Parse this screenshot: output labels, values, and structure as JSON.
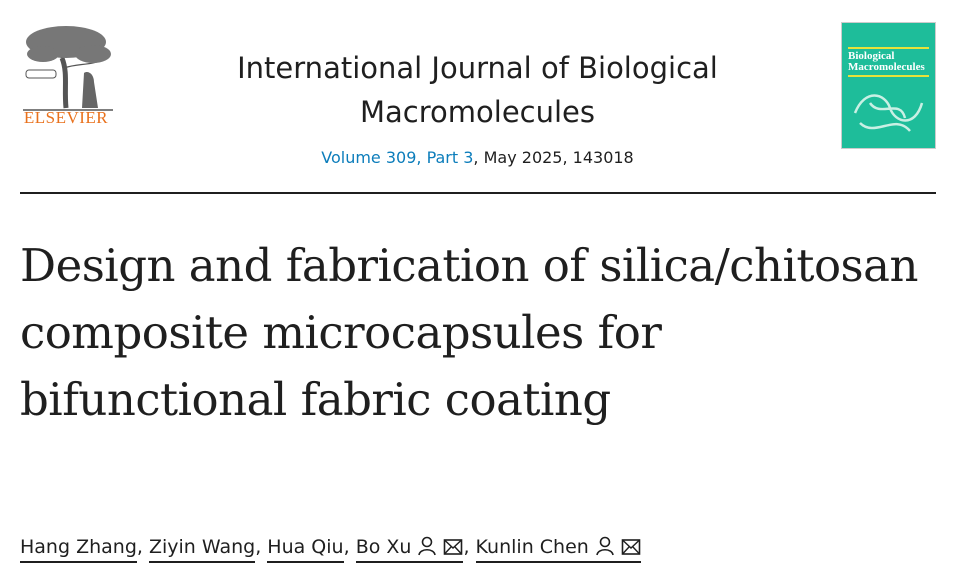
{
  "publisher": {
    "name": "ELSEVIER",
    "logo_icon": "elsevier-tree-logo"
  },
  "journal": {
    "title": "International Journal of Biological Macromolecules",
    "volume_link": "Volume 309, Part 3",
    "rest": ", May 2025, 143018",
    "cover": {
      "title_line1": "Biological",
      "title_line2": "Macromolecules",
      "color": "#1ebd9a"
    }
  },
  "article": {
    "title": "Design and fabrication of silica/chitosan composite microcapsules for bifunctional fabric coating"
  },
  "authors": [
    {
      "name": "Hang Zhang",
      "sep": ", "
    },
    {
      "name": "Ziyin Wang",
      "sep": ", "
    },
    {
      "name": "Hua Qiu",
      "sep": ", "
    },
    {
      "name": "Bo Xu",
      "icons": [
        "person-icon",
        "envelope-icon"
      ],
      "sep": ", "
    },
    {
      "name": "Kunlin Chen",
      "icons": [
        "person-icon",
        "envelope-icon"
      ],
      "sep": ""
    }
  ],
  "colors": {
    "link": "#0c7dbb",
    "publisher": "#e9711c"
  }
}
